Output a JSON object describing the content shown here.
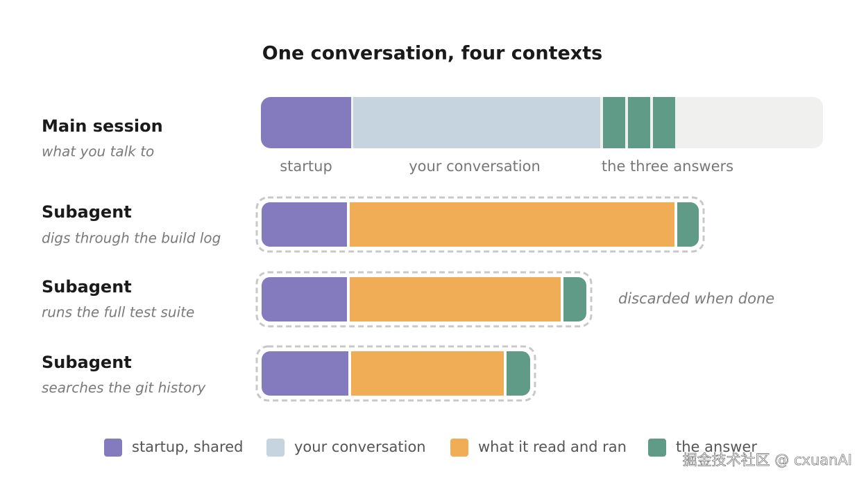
{
  "title": "One conversation, four contexts",
  "rows": [
    {
      "name": "Main session",
      "description": "what you talk to"
    },
    {
      "name": "Subagent",
      "description": "digs through the build log"
    },
    {
      "name": "Subagent",
      "description": "runs the full test suite"
    },
    {
      "name": "Subagent",
      "description": "searches the git history"
    }
  ],
  "main_segment_labels": [
    "startup",
    "your conversation",
    "the three answers"
  ],
  "annotation": "discarded when done",
  "legend": [
    {
      "label": "startup, shared",
      "color": "#837bbd"
    },
    {
      "label": "your conversation",
      "color": "#c6d4e0"
    },
    {
      "label": "what it read and ran",
      "color": "#f0ad55"
    },
    {
      "label": "the answer",
      "color": "#5f9b86"
    }
  ],
  "watermark": "掘金技术社区 @ cxuanAI"
}
